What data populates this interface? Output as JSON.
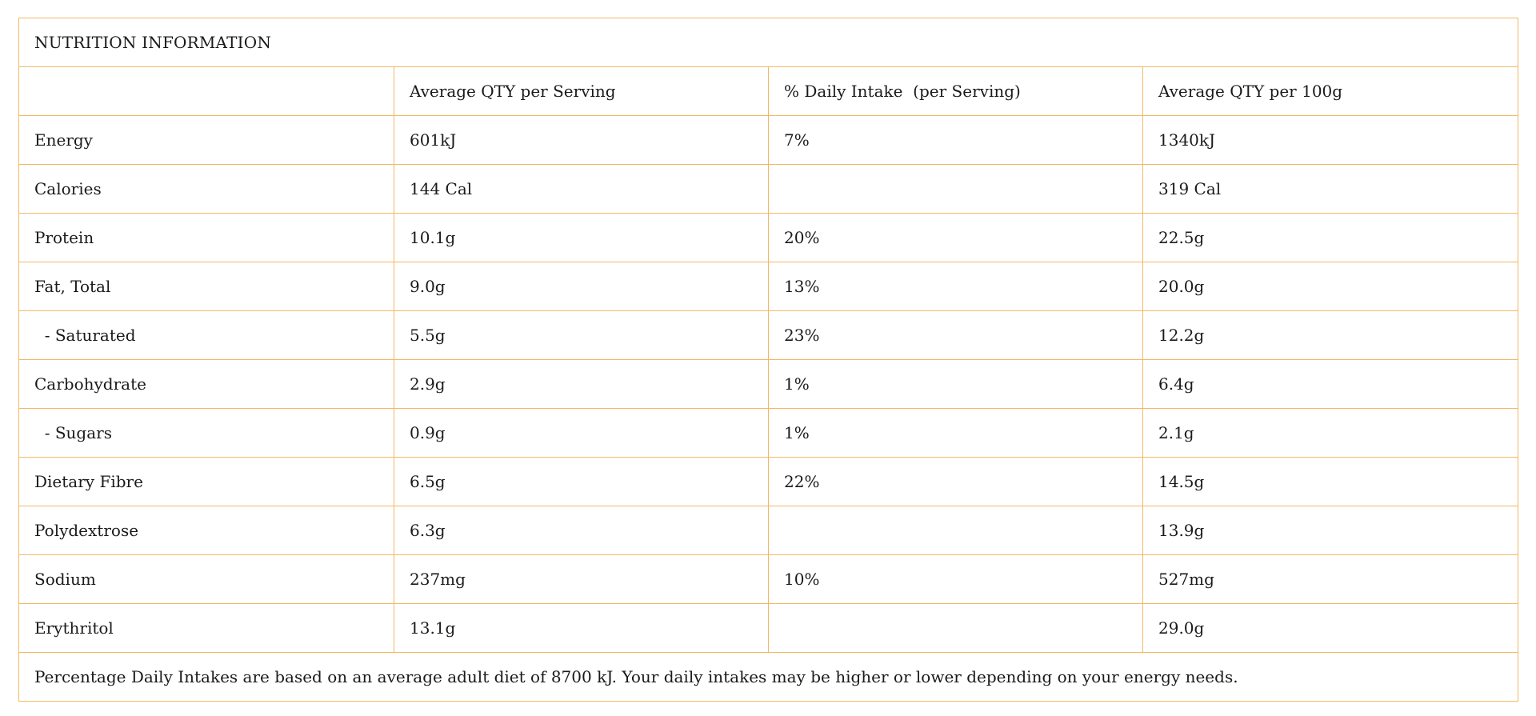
{
  "title": "NUTRITION INFORMATION",
  "columns": [
    "",
    "Average QTY per Serving",
    "% Daily Intake  (per Serving)",
    "Average QTY per 100g"
  ],
  "rows": [
    {
      "nutrient": "Energy",
      "per_serving": "601kJ",
      "daily_intake": "7%",
      "per_100g": "1340kJ"
    },
    {
      "nutrient": "Calories",
      "per_serving": "144 Cal",
      "daily_intake": "",
      "per_100g": "319 Cal"
    },
    {
      "nutrient": "Protein",
      "per_serving": "10.1g",
      "daily_intake": "20%",
      "per_100g": "22.5g"
    },
    {
      "nutrient": "Fat, Total",
      "per_serving": "9.0g",
      "daily_intake": "13%",
      "per_100g": "20.0g"
    },
    {
      "nutrient": "  - Saturated",
      "per_serving": "5.5g",
      "daily_intake": "23%",
      "per_100g": "12.2g"
    },
    {
      "nutrient": "Carbohydrate",
      "per_serving": "2.9g",
      "daily_intake": "1%",
      "per_100g": "6.4g"
    },
    {
      "nutrient": "  - Sugars",
      "per_serving": "0.9g",
      "daily_intake": "1%",
      "per_100g": "2.1g"
    },
    {
      "nutrient": "Dietary Fibre",
      "per_serving": "6.5g",
      "daily_intake": "22%",
      "per_100g": "14.5g"
    },
    {
      "nutrient": "Polydextrose",
      "per_serving": "6.3g",
      "daily_intake": "",
      "per_100g": "13.9g"
    },
    {
      "nutrient": "Sodium",
      "per_serving": "237mg",
      "daily_intake": "10%",
      "per_100g": "527mg"
    },
    {
      "nutrient": "Erythritol",
      "per_serving": "13.1g",
      "daily_intake": "",
      "per_100g": "29.0g"
    }
  ],
  "footnote": "Percentage Daily Intakes are based on an average adult diet of 8700 kJ. Your daily intakes may be higher or lower depending on your energy needs.",
  "colors": {
    "border": "#f2b866",
    "text": "#1a1a1a",
    "background": "#ffffff"
  }
}
